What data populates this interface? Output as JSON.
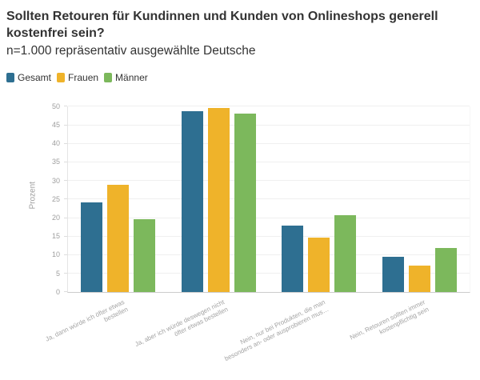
{
  "header": {
    "title": "Sollten Retouren für Kundinnen und Kunden von Onlineshops generell kostenfrei sein?",
    "subtitle": "n=1.000 repräsentativ ausgewählte Deutsche"
  },
  "chart_data": {
    "type": "bar",
    "title": "Sollten Retouren für Kundinnen und Kunden von Onlineshops generell kostenfrei sein?",
    "subtitle": "n=1.000 repräsentativ ausgewählte Deutsche",
    "xlabel": "",
    "ylabel": "Prozent",
    "ylim": [
      0,
      50
    ],
    "ytick_step": 5,
    "grid": true,
    "legend_position": "top-left",
    "categories": [
      "Ja, dann würde ich öfter etwas bestellen",
      "Ja, aber ich würde deswegen nicht öfter etwas bestellen",
      "Nein, nur bei Produkten, die man besonders an- oder ausprobieren mus…",
      "Nein, Retouren sollten immer kostenpflichtig sein"
    ],
    "category_lines": [
      [
        "Ja, dann würde ich öfter etwas",
        "bestellen"
      ],
      [
        "Ja, aber ich würde deswegen nicht",
        "öfter etwas bestellen"
      ],
      [
        "Nein, nur bei Produkten, die man",
        "besonders an- oder ausprobieren mus…"
      ],
      [
        "Nein, Retouren sollten immer",
        "kostenpflichtig sein"
      ]
    ],
    "series": [
      {
        "name": "Gesamt",
        "color": "#2e6f91",
        "values": [
          24.3,
          48.8,
          17.9,
          9.6
        ]
      },
      {
        "name": "Frauen",
        "color": "#efb32a",
        "values": [
          28.9,
          49.6,
          14.8,
          7.1
        ]
      },
      {
        "name": "Männer",
        "color": "#7cb85c",
        "values": [
          19.8,
          48.2,
          20.8,
          11.9
        ]
      }
    ],
    "colors": {
      "grid": "#f0f0f0",
      "axis": "#e4e4e4",
      "baseline": "#cccccc",
      "tick_text": "#9e9e9e"
    }
  }
}
